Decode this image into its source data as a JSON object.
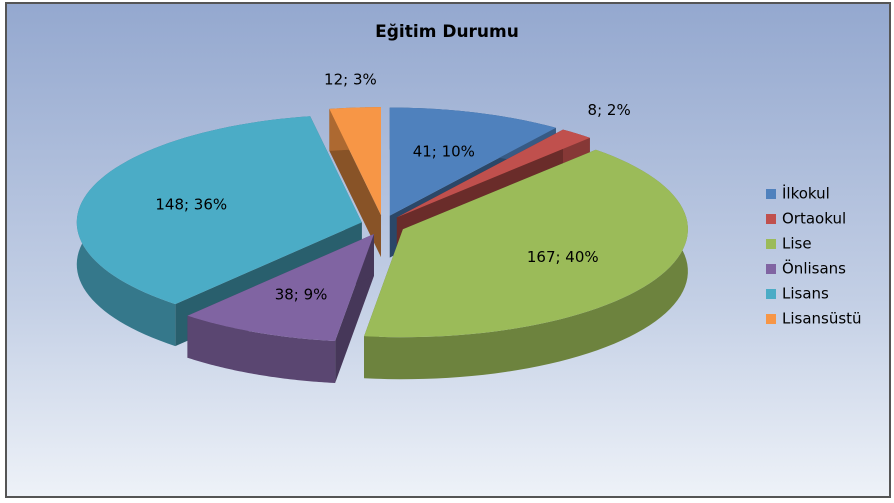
{
  "chart_data": {
    "type": "pie3d",
    "title": "Eğitim Durumu",
    "categories": [
      "İlkokul",
      "Ortaokul",
      "Lise",
      "Önlisans",
      "Lisans",
      "Lisansüstü"
    ],
    "values": [
      41,
      8,
      167,
      38,
      148,
      12
    ],
    "value_labels": [
      "41; 10%",
      "8; 2%",
      "167; 40%",
      "38; 9%",
      "148; 36%",
      "12; 3%"
    ],
    "colors": [
      "#4f81bd",
      "#c0504d",
      "#9bbb59",
      "#8064a2",
      "#4bacc6",
      "#f79646"
    ],
    "legend": "right"
  }
}
